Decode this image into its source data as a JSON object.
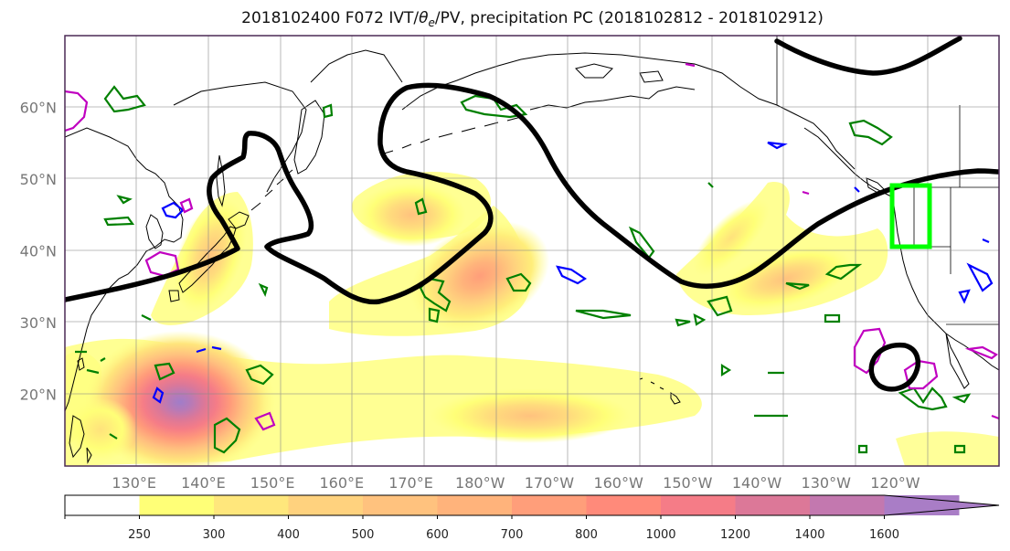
{
  "map": {
    "title": "2018102400 F072 IVT/θe/PV, precipitation PC (2018102812 - 2018102912)",
    "title_prefix": "2018102400 F072 IVT/",
    "title_theta": "θ",
    "title_sub": "e",
    "title_suffix": "/PV, precipitation PC (2018102812 - 2018102912)",
    "projection": "equirectangular",
    "lon_range": [
      120,
      255
    ],
    "lat_range": [
      10,
      70
    ],
    "lat_ticks": [
      "20°N",
      "30°N",
      "40°N",
      "50°N",
      "60°N"
    ],
    "lon_ticks": [
      "130°E",
      "140°E",
      "150°E",
      "160°E",
      "170°E",
      "180°W",
      "170°W",
      "160°W",
      "150°W",
      "140°W",
      "130°W",
      "120°W"
    ],
    "grid": true,
    "colors": {
      "coastline": "#000000",
      "pv_contour": "#000000",
      "theta_contour_green": "#008000",
      "theta_contour_blue": "#0000ff",
      "theta_contour_magenta": "#c000c0",
      "highlight_box": "#00ff00"
    }
  },
  "colorbar": {
    "levels": [
      "250",
      "300",
      "400",
      "500",
      "600",
      "700",
      "800",
      "1000",
      "1200",
      "1400",
      "1600"
    ],
    "colors": [
      "#ffffff",
      "#ffff77",
      "#ffe77c",
      "#ffd27e",
      "#ffc27e",
      "#ffb37b",
      "#ff9e7a",
      "#ff8a7a",
      "#f57c87",
      "#dc7898",
      "#c378af",
      "#a97dc6"
    ],
    "extend": "max"
  },
  "chart_data": {
    "type": "heatmap",
    "variable": "IVT",
    "levels": [
      250,
      300,
      400,
      500,
      600,
      700,
      800,
      1000,
      1200,
      1400,
      1600
    ],
    "blobs": [
      {
        "lon": 135.5,
        "lat": 18.5,
        "peak": 1600
      },
      {
        "lon": 178,
        "lat": 36,
        "peak": 800
      },
      {
        "lon": 169,
        "lat": 44,
        "peak": 500
      },
      {
        "lon": 144,
        "lat": 38,
        "peak": 500
      },
      {
        "lon": 215,
        "lat": 35,
        "peak": 500
      },
      {
        "lon": 180,
        "lat": 18,
        "peak": 400
      }
    ],
    "highlight_box": {
      "lon_min": 235.5,
      "lon_max": 241,
      "lat_min": 40.5,
      "lat_max": 49
    }
  }
}
